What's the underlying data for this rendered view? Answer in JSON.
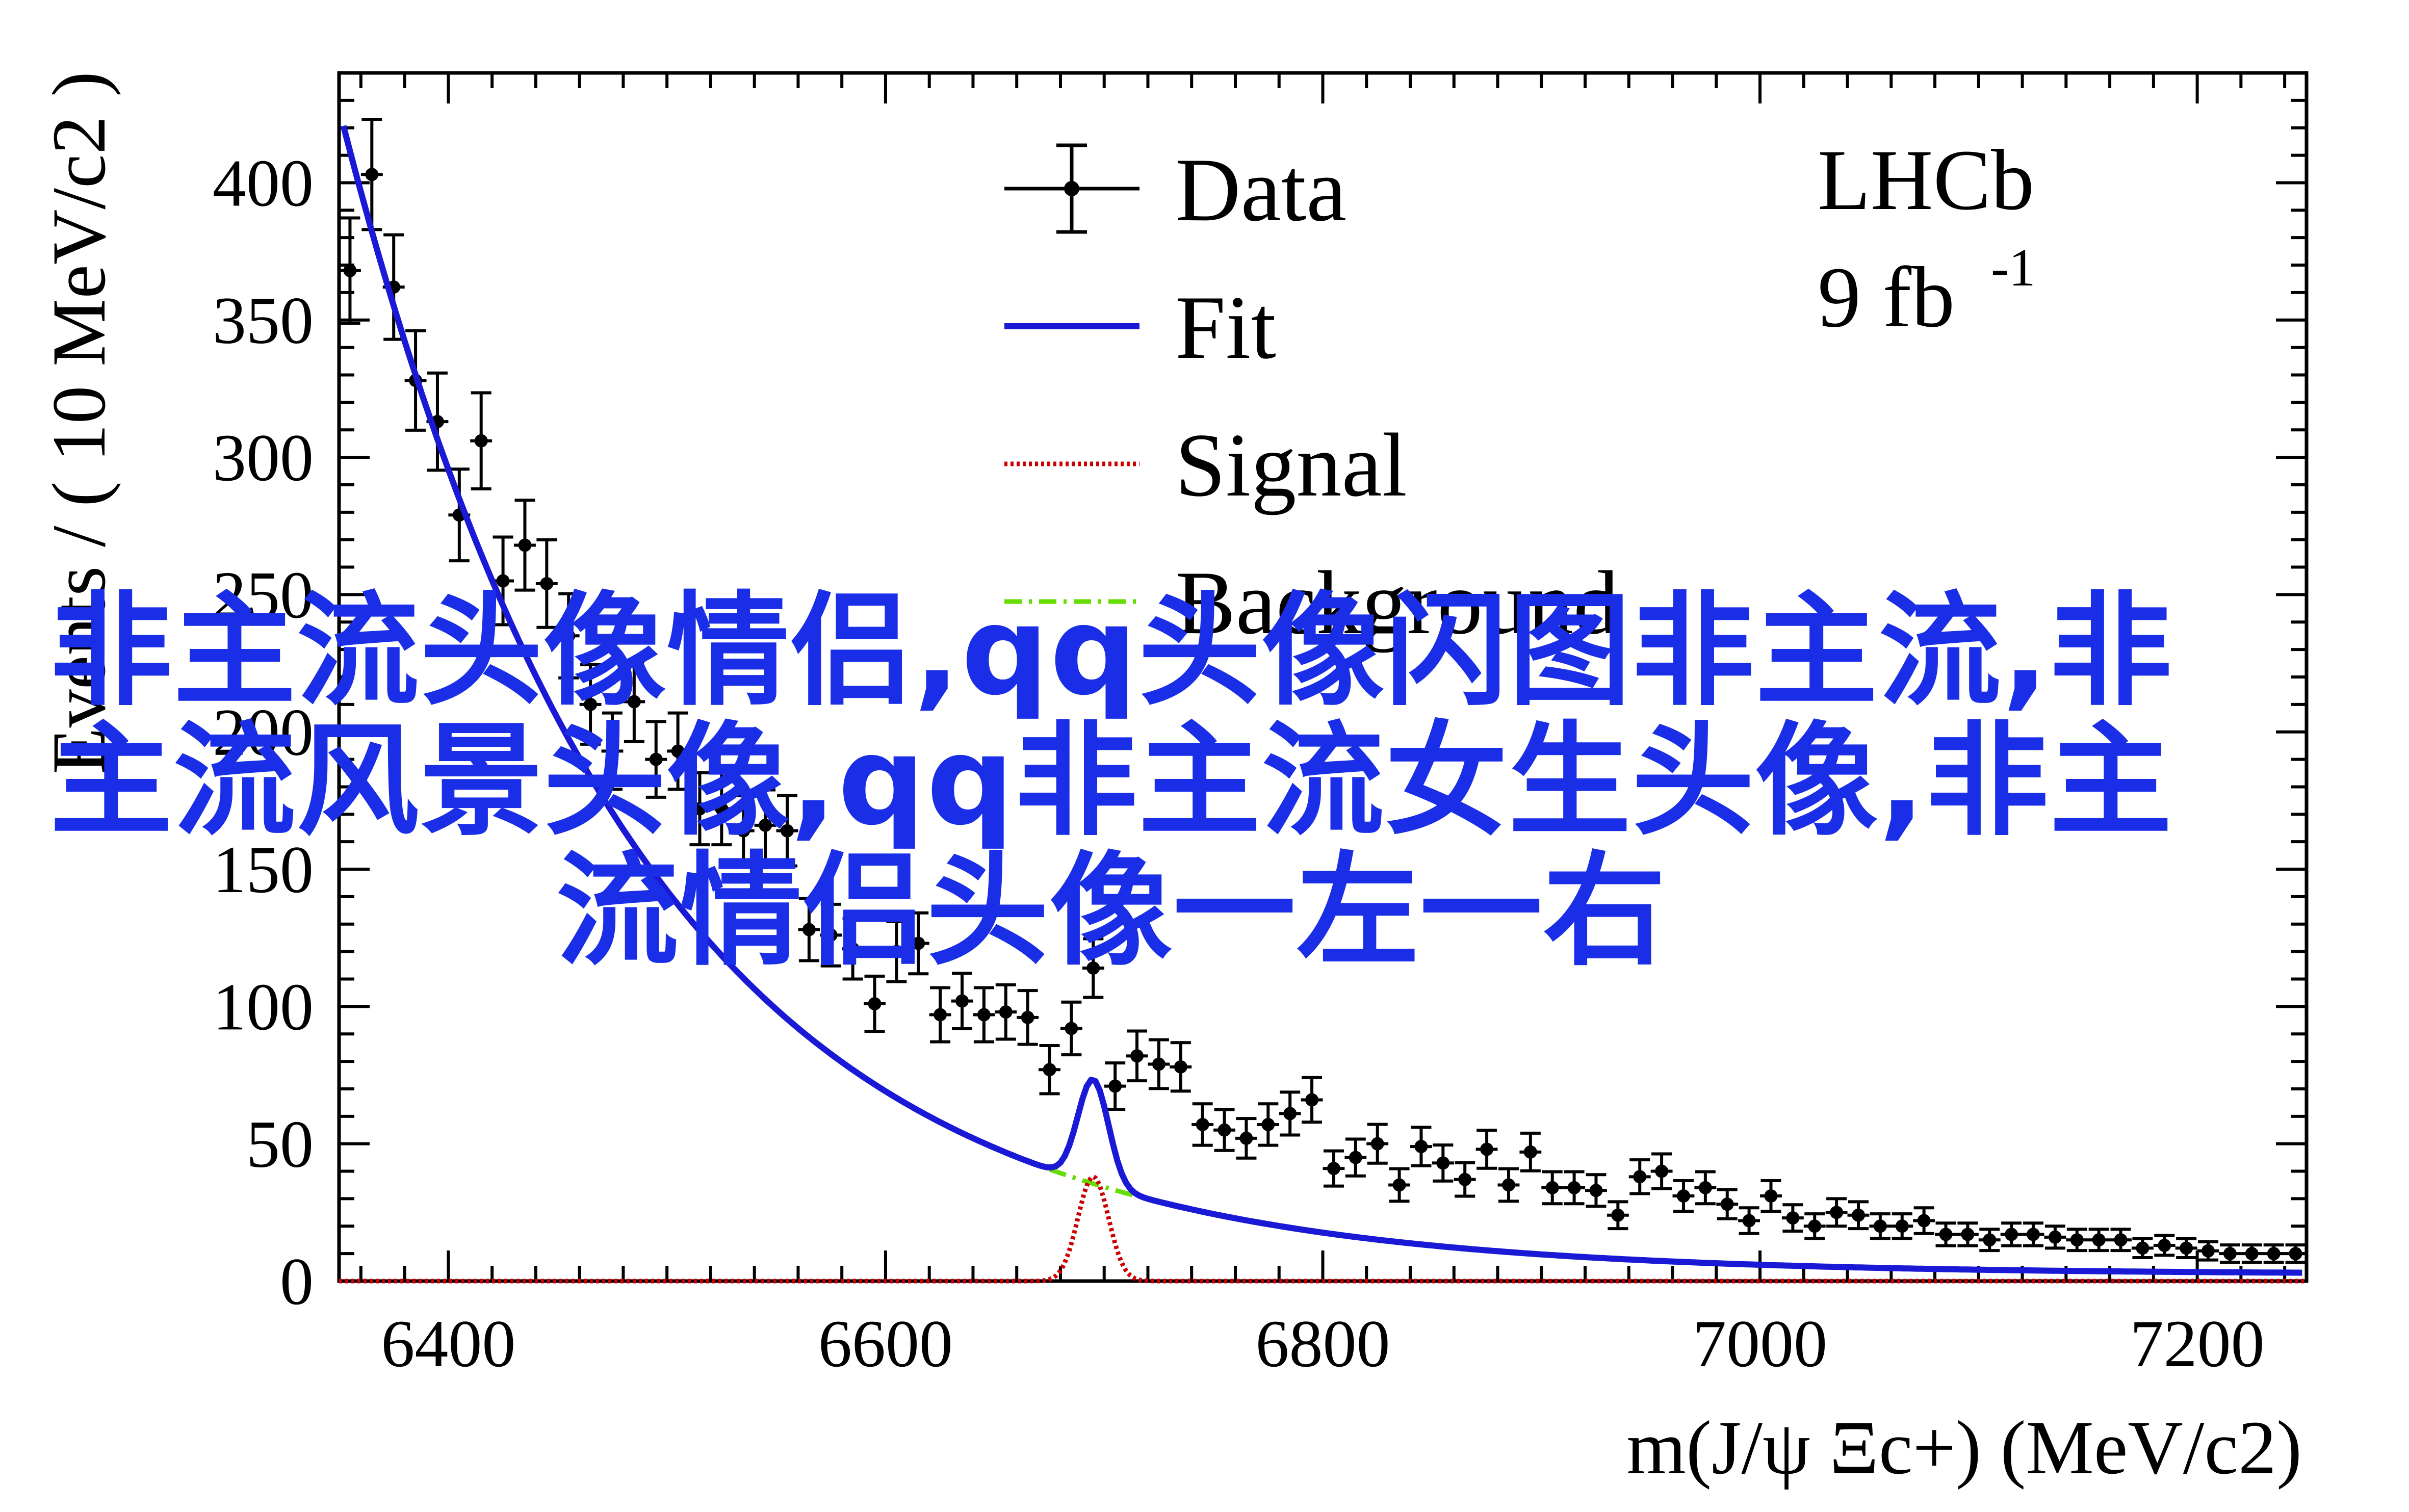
{
  "chart_data": {
    "type": "scatter",
    "experiment": "LHCb",
    "luminosity": "9 fb",
    "luminosity_sup": "-1",
    "xlabel": "m(J/ψ Ξc+) (MeV/c2)",
    "ylabel": "Events / ( 10 MeV/c2 )",
    "xlim": [
      6350,
      7250
    ],
    "ylim": [
      0,
      440
    ],
    "x_ticks": [
      6400,
      6600,
      6800,
      7000,
      7200
    ],
    "y_ticks": [
      0,
      50,
      100,
      150,
      200,
      250,
      300,
      350,
      400
    ],
    "legend_position": "top-center",
    "legend": [
      "Data",
      "Fit",
      "Signal",
      "Background"
    ],
    "colors": {
      "data": "#000000",
      "fit": "#1a1ad6",
      "signal": "#cc0000",
      "background": "#66dd00"
    },
    "fit_model": {
      "background": {
        "a": 409,
        "tau": 135,
        "c": 2.5,
        "x0": 6355
      },
      "signal": {
        "mass": 6695,
        "width": 7,
        "amplitude": 38
      }
    },
    "series": [
      {
        "name": "Data",
        "x": [
          6355,
          6365,
          6375,
          6385,
          6395,
          6405,
          6415,
          6425,
          6435,
          6445,
          6455,
          6465,
          6475,
          6485,
          6495,
          6505,
          6515,
          6525,
          6535,
          6545,
          6555,
          6565,
          6575,
          6585,
          6595,
          6605,
          6615,
          6625,
          6635,
          6645,
          6655,
          6665,
          6675,
          6685,
          6695,
          6705,
          6715,
          6725,
          6735,
          6745,
          6755,
          6765,
          6775,
          6785,
          6795,
          6805,
          6815,
          6825,
          6835,
          6845,
          6855,
          6865,
          6875,
          6885,
          6895,
          6905,
          6915,
          6925,
          6935,
          6945,
          6955,
          6965,
          6975,
          6985,
          6995,
          7005,
          7015,
          7025,
          7035,
          7045,
          7055,
          7065,
          7075,
          7085,
          7095,
          7105,
          7115,
          7125,
          7135,
          7145,
          7155,
          7165,
          7175,
          7185,
          7195,
          7205,
          7215,
          7225,
          7235,
          7245
        ],
        "y": [
          368,
          403,
          362,
          328,
          313,
          279,
          306,
          255,
          268,
          254,
          235,
          210,
          193,
          211,
          190,
          193,
          172,
          172,
          164,
          166,
          164,
          128,
          126,
          121,
          101,
          120,
          123,
          97,
          102,
          97,
          98,
          96,
          77,
          92,
          114,
          71,
          82,
          79,
          78,
          57,
          55,
          52,
          57,
          61,
          66,
          41,
          45,
          50,
          35,
          49,
          43,
          37,
          48,
          35,
          47,
          34,
          34,
          33,
          24,
          38,
          40,
          31,
          34,
          28,
          22,
          31,
          23,
          20,
          25,
          24,
          20,
          20,
          22,
          17,
          17,
          15,
          17,
          17,
          16,
          15,
          15,
          15,
          12,
          13,
          12,
          11,
          10,
          10,
          10,
          10
        ]
      }
    ]
  },
  "overlay_text": "非主流头像情侣,qq头像闪图非主流,非主流风景头像,qq非主流女生头像,非主流情侣头像一左一右"
}
